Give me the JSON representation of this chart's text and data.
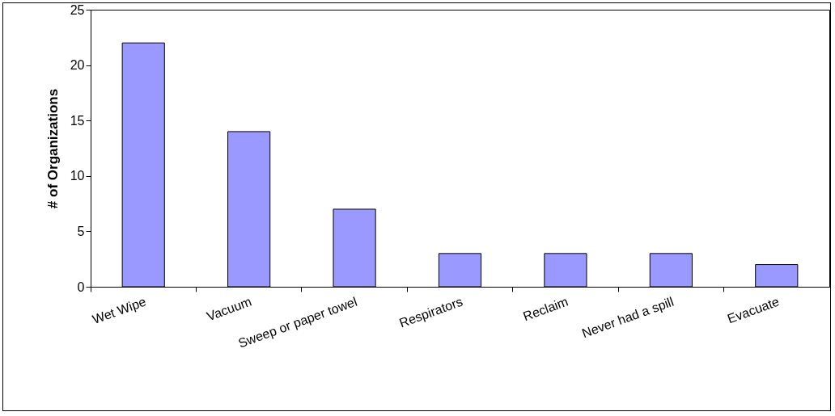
{
  "chart_data": {
    "type": "bar",
    "ylabel": "# of Organizations",
    "categories": [
      "Wet Wipe",
      "Vacuum",
      "Sweep or paper towel",
      "Respirators",
      "Reclaim",
      "Never had a spill",
      "Evacuate"
    ],
    "values": [
      22,
      14,
      7,
      3,
      3,
      3,
      2
    ],
    "color": "#9999ff",
    "ylim": [
      0,
      25
    ],
    "yticks": [
      0,
      5,
      10,
      15,
      20,
      25
    ],
    "grid": false
  }
}
